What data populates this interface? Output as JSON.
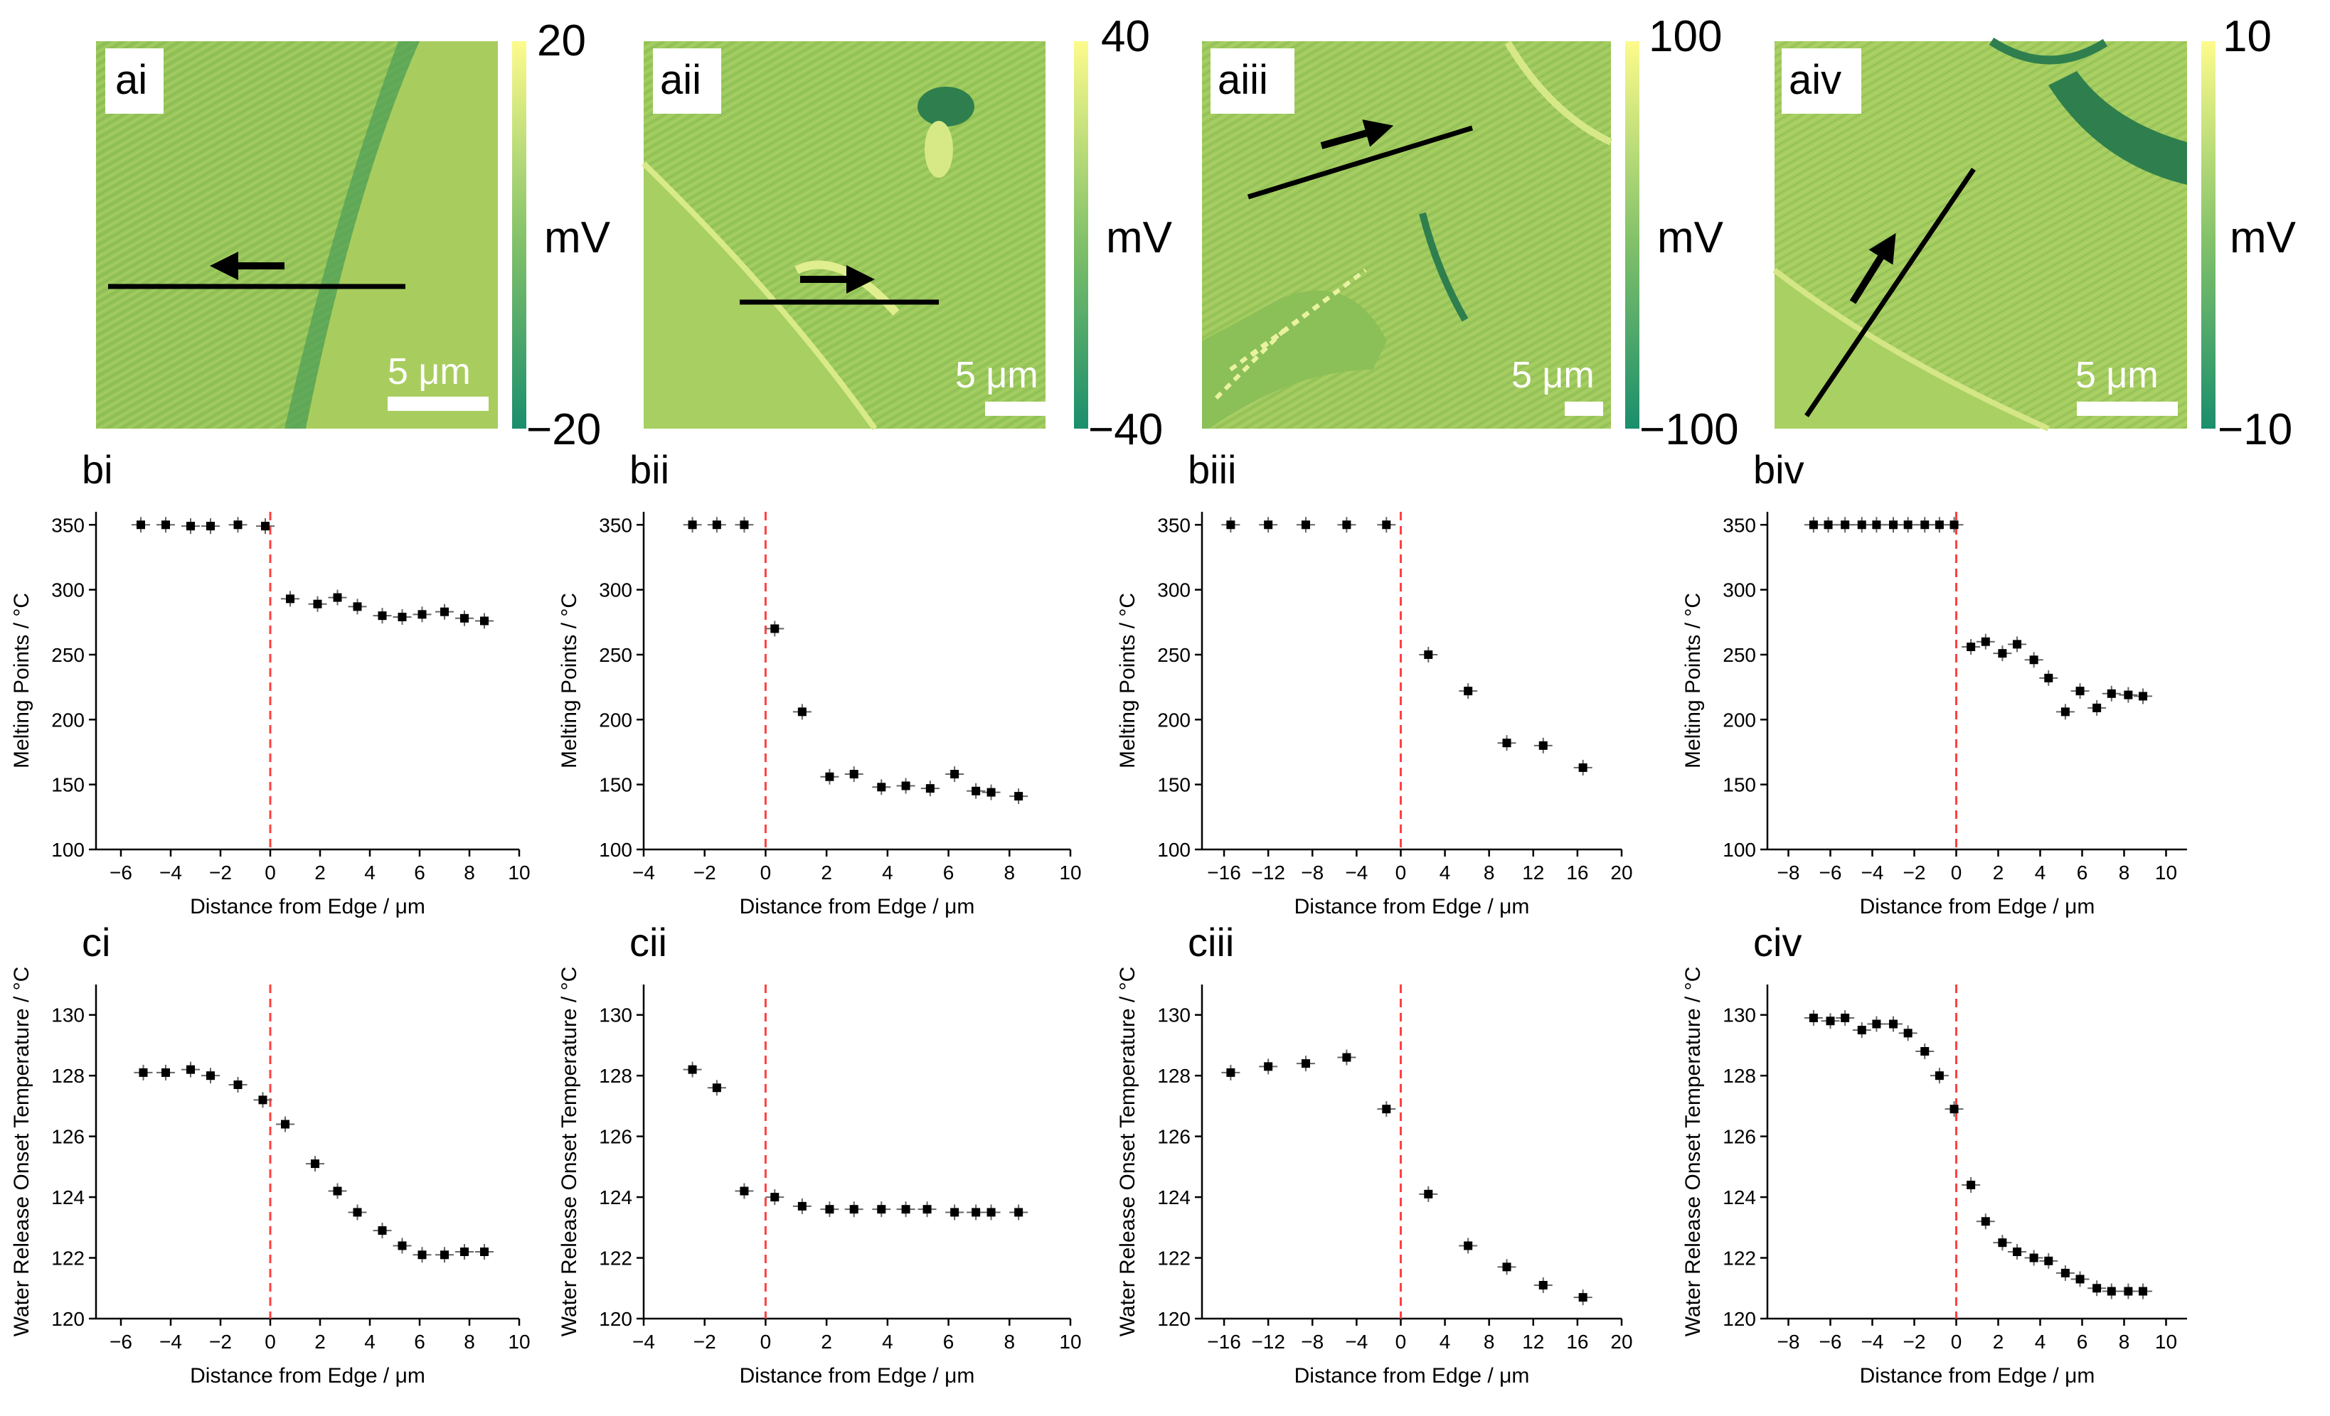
{
  "colors": {
    "cb_top": "#fdfb8c",
    "cb_mid": "#86c36a",
    "cb_bot": "#1a8e6c",
    "img_base": "#9cc85a",
    "img_dark": "#2e8c54",
    "img_light": "#d8e98a",
    "marker": "#000000",
    "edge_line": "#ff4040"
  },
  "images": [
    {
      "label": "ai",
      "cb_max": "20",
      "cb_min": "−20",
      "cb_unit": "mV",
      "scale": "5 μm",
      "arrow": "left"
    },
    {
      "label": "aii",
      "cb_max": "40",
      "cb_min": "−40",
      "cb_unit": "mV",
      "scale": "5 μm",
      "arrow": "right"
    },
    {
      "label": "aiii",
      "cb_max": "100",
      "cb_min": "−100",
      "cb_unit": "mV",
      "scale": "5 μm",
      "arrow": "up-right"
    },
    {
      "label": "aiv",
      "cb_max": "10",
      "cb_min": "−10",
      "cb_unit": "mV",
      "scale": "5 μm",
      "arrow": "up-right"
    }
  ],
  "chart_data": [
    {
      "panel": "bi",
      "type": "scatter",
      "xlabel": "Distance from Edge / μm",
      "ylabel": "Melting Points / °C",
      "xlim": [
        -7,
        10
      ],
      "ylim": [
        100,
        360
      ],
      "xticks": [
        -6,
        -4,
        -2,
        0,
        2,
        4,
        6,
        8,
        10
      ],
      "yticks": [
        100,
        150,
        200,
        250,
        300,
        350
      ],
      "edge": 0,
      "x": [
        -5.2,
        -4.2,
        -3.2,
        -2.4,
        -1.3,
        -0.2,
        0.8,
        1.9,
        2.7,
        3.5,
        4.5,
        5.3,
        6.1,
        7.0,
        7.8,
        8.6
      ],
      "y": [
        350,
        350,
        349,
        349,
        350,
        349,
        293,
        289,
        294,
        287,
        280,
        279,
        281,
        283,
        278,
        276
      ]
    },
    {
      "panel": "bii",
      "type": "scatter",
      "xlabel": "Distance from Edge / μm",
      "ylabel": "Melting Points / °C",
      "xlim": [
        -4,
        10
      ],
      "ylim": [
        100,
        360
      ],
      "xticks": [
        -4,
        -2,
        0,
        2,
        4,
        6,
        8,
        10
      ],
      "yticks": [
        100,
        150,
        200,
        250,
        300,
        350
      ],
      "edge": 0,
      "x": [
        -2.4,
        -1.6,
        -0.7,
        0.3,
        1.2,
        2.1,
        2.9,
        3.8,
        4.6,
        5.4,
        6.2,
        6.9,
        7.4,
        8.3
      ],
      "y": [
        350,
        350,
        350,
        270,
        206,
        156,
        158,
        148,
        149,
        147,
        158,
        145,
        144,
        141
      ]
    },
    {
      "panel": "biii",
      "type": "scatter",
      "xlabel": "Distance from Edge / μm",
      "ylabel": "Melting Points / °C",
      "xlim": [
        -18,
        20
      ],
      "ylim": [
        100,
        360
      ],
      "xticks": [
        -16,
        -12,
        -8,
        -4,
        0,
        4,
        8,
        12,
        16,
        20
      ],
      "yticks": [
        100,
        150,
        200,
        250,
        300,
        350
      ],
      "edge": 0,
      "x": [
        -15.4,
        -12.0,
        -8.6,
        -4.9,
        -1.3,
        2.5,
        6.1,
        9.6,
        12.9,
        16.5
      ],
      "y": [
        350,
        350,
        350,
        350,
        350,
        250,
        222,
        182,
        180,
        163
      ]
    },
    {
      "panel": "biv",
      "type": "scatter",
      "xlabel": "Distance from Edge / μm",
      "ylabel": "Melting Points / °C",
      "xlim": [
        -9,
        11
      ],
      "ylim": [
        100,
        360
      ],
      "xticks": [
        -8,
        -6,
        -4,
        -2,
        0,
        2,
        4,
        6,
        8,
        10
      ],
      "yticks": [
        100,
        150,
        200,
        250,
        300,
        350
      ],
      "edge": 0,
      "x": [
        -6.8,
        -6.1,
        -5.3,
        -4.5,
        -3.8,
        -3.0,
        -2.3,
        -1.5,
        -0.8,
        -0.1,
        0.7,
        1.4,
        2.2,
        2.9,
        3.7,
        4.4,
        5.2,
        5.9,
        6.7,
        7.4,
        8.2,
        8.9
      ],
      "y": [
        350,
        350,
        350,
        350,
        350,
        350,
        350,
        350,
        350,
        350,
        256,
        260,
        251,
        258,
        246,
        232,
        206,
        222,
        209,
        220,
        219,
        218
      ]
    },
    {
      "panel": "ci",
      "type": "scatter",
      "xlabel": "Distance from Edge / μm",
      "ylabel": "Water Release Onset Temperature / °C",
      "xlim": [
        -7,
        10
      ],
      "ylim": [
        120,
        131
      ],
      "xticks": [
        -6,
        -4,
        -2,
        0,
        2,
        4,
        6,
        8,
        10
      ],
      "yticks": [
        120,
        122,
        124,
        126,
        128,
        130
      ],
      "edge": 0,
      "x": [
        -5.1,
        -4.2,
        -3.2,
        -2.4,
        -1.3,
        -0.3,
        0.6,
        1.8,
        2.7,
        3.5,
        4.5,
        5.3,
        6.1,
        7.0,
        7.8,
        8.6
      ],
      "y": [
        128.1,
        128.1,
        128.2,
        128.0,
        127.7,
        127.2,
        126.4,
        125.1,
        124.2,
        123.5,
        122.9,
        122.4,
        122.1,
        122.1,
        122.2,
        122.2
      ]
    },
    {
      "panel": "cii",
      "type": "scatter",
      "xlabel": "Distance from Edge / μm",
      "ylabel": "Water Release Onset Temperature / °C",
      "xlim": [
        -4,
        10
      ],
      "ylim": [
        120,
        131
      ],
      "xticks": [
        -4,
        -2,
        0,
        2,
        4,
        6,
        8,
        10
      ],
      "yticks": [
        120,
        122,
        124,
        126,
        128,
        130
      ],
      "edge": 0,
      "x": [
        -2.4,
        -1.6,
        -0.7,
        0.3,
        1.2,
        2.1,
        2.9,
        3.8,
        4.6,
        5.3,
        6.2,
        6.9,
        7.4,
        8.3
      ],
      "y": [
        128.2,
        127.6,
        124.2,
        124.0,
        123.7,
        123.6,
        123.6,
        123.6,
        123.6,
        123.6,
        123.5,
        123.5,
        123.5,
        123.5
      ]
    },
    {
      "panel": "ciii",
      "type": "scatter",
      "xlabel": "Distance from Edge / μm",
      "ylabel": "Water Release Onset Temperature / °C",
      "xlim": [
        -18,
        20
      ],
      "ylim": [
        120,
        131
      ],
      "xticks": [
        -16,
        -12,
        -8,
        -4,
        0,
        4,
        8,
        12,
        16,
        20
      ],
      "yticks": [
        120,
        122,
        124,
        126,
        128,
        130
      ],
      "edge": 0,
      "x": [
        -15.4,
        -12.0,
        -8.6,
        -4.9,
        -1.3,
        2.5,
        6.1,
        9.6,
        12.9,
        16.5
      ],
      "y": [
        128.1,
        128.3,
        128.4,
        128.6,
        126.9,
        124.1,
        122.4,
        121.7,
        121.1,
        120.7
      ]
    },
    {
      "panel": "civ",
      "type": "scatter",
      "xlabel": "Distance from Edge / μm",
      "ylabel": "Water Release Onset Temperature / °C",
      "xlim": [
        -9,
        11
      ],
      "ylim": [
        120,
        131
      ],
      "xticks": [
        -8,
        -6,
        -4,
        -2,
        0,
        2,
        4,
        6,
        8,
        10
      ],
      "yticks": [
        120,
        122,
        124,
        126,
        128,
        130
      ],
      "edge": 0,
      "x": [
        -6.8,
        -6.0,
        -5.3,
        -4.5,
        -3.8,
        -3.0,
        -2.3,
        -1.5,
        -0.8,
        -0.1,
        0.7,
        1.4,
        2.2,
        2.9,
        3.7,
        4.4,
        5.2,
        5.9,
        6.7,
        7.4,
        8.2,
        8.9
      ],
      "y": [
        129.9,
        129.8,
        129.9,
        129.5,
        129.7,
        129.7,
        129.4,
        128.8,
        128.0,
        126.9,
        124.4,
        123.2,
        122.5,
        122.2,
        122.0,
        121.9,
        121.5,
        121.3,
        121.0,
        120.9,
        120.9,
        120.9
      ]
    }
  ]
}
